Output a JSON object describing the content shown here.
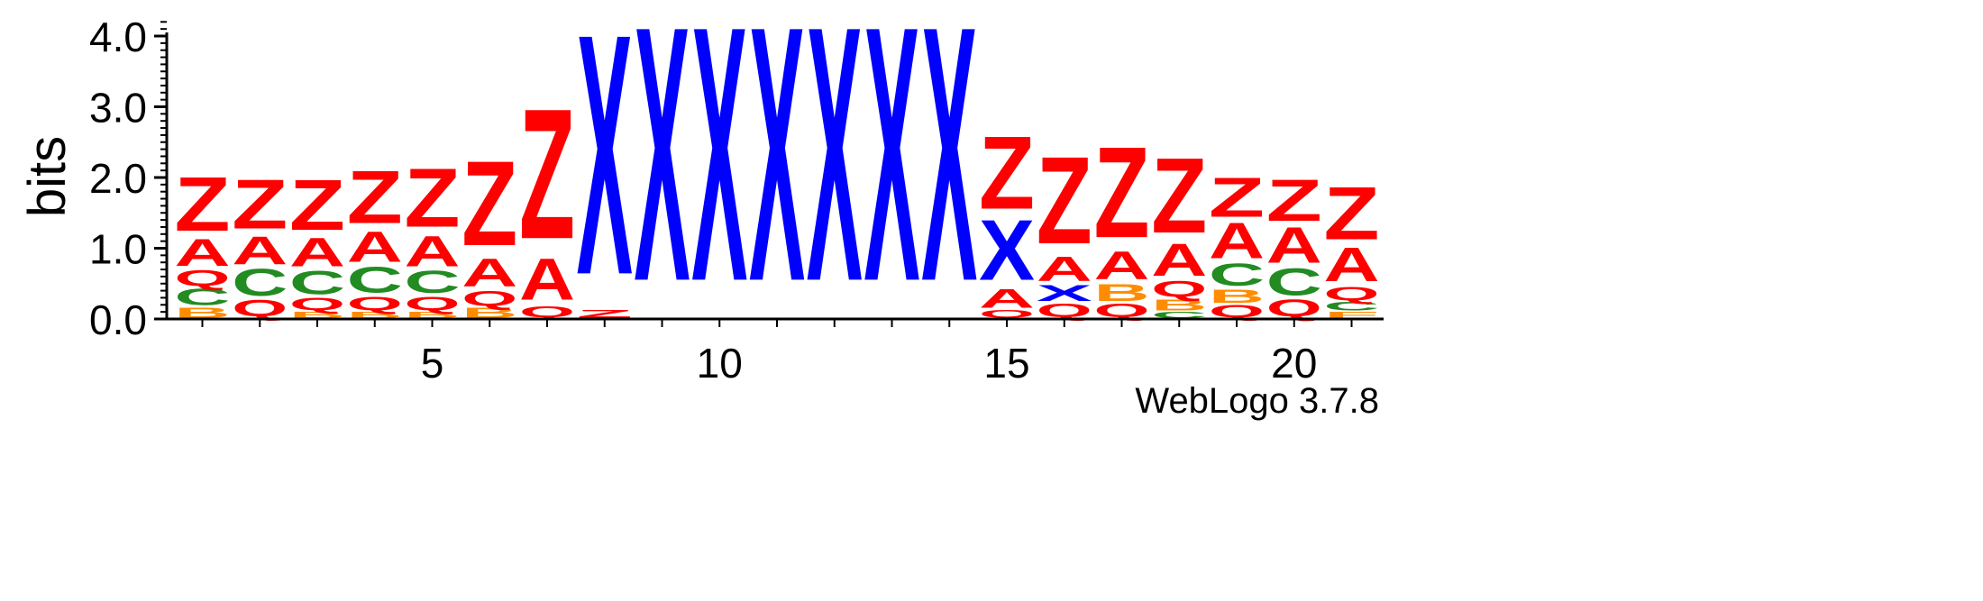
{
  "credit": "WebLogo 3.7.8",
  "colors": {
    "Z": "#ff0000",
    "A": "#ff0000",
    "Q": "#ff0000",
    "X": "#0000ff",
    "C": "#228b22",
    "B": "#ff8c00",
    "F": "#ff8c00"
  },
  "chart_data": {
    "type": "sequence-logo",
    "xlabel": "",
    "ylabel": "bits",
    "ylim": [
      0,
      4.2
    ],
    "yticks": [
      "0.0",
      "1.0",
      "2.0",
      "3.0",
      "4.0"
    ],
    "xticks": [
      "5",
      "10",
      "15",
      "20"
    ],
    "grid": false,
    "positions": [
      {
        "pos": 1,
        "stack": [
          {
            "letter": "B",
            "height": 0.16
          },
          {
            "letter": "C",
            "height": 0.27
          },
          {
            "letter": "Q",
            "height": 0.26
          },
          {
            "letter": "A",
            "height": 0.44
          },
          {
            "letter": "Z",
            "height": 0.88
          }
        ]
      },
      {
        "pos": 2,
        "stack": [
          {
            "letter": "Q",
            "height": 0.27
          },
          {
            "letter": "C",
            "height": 0.44
          },
          {
            "letter": "A",
            "height": 0.46
          },
          {
            "letter": "Z",
            "height": 0.8
          }
        ]
      },
      {
        "pos": 3,
        "stack": [
          {
            "letter": "B",
            "height": 0.1
          },
          {
            "letter": "Q",
            "height": 0.2
          },
          {
            "letter": "C",
            "height": 0.38
          },
          {
            "letter": "A",
            "height": 0.47
          },
          {
            "letter": "Z",
            "height": 0.82
          }
        ]
      },
      {
        "pos": 4,
        "stack": [
          {
            "letter": "B",
            "height": 0.1
          },
          {
            "letter": "Q",
            "height": 0.22
          },
          {
            "letter": "C",
            "height": 0.42
          },
          {
            "letter": "A",
            "height": 0.5
          },
          {
            "letter": "Z",
            "height": 0.86
          }
        ]
      },
      {
        "pos": 5,
        "stack": [
          {
            "letter": "B",
            "height": 0.1
          },
          {
            "letter": "Q",
            "height": 0.22
          },
          {
            "letter": "C",
            "height": 0.36
          },
          {
            "letter": "A",
            "height": 0.5
          },
          {
            "letter": "Z",
            "height": 0.95
          }
        ]
      },
      {
        "pos": 6,
        "stack": [
          {
            "letter": "B",
            "height": 0.16
          },
          {
            "letter": "Q",
            "height": 0.24
          },
          {
            "letter": "A",
            "height": 0.46
          },
          {
            "letter": "Z",
            "height": 1.38
          }
        ]
      },
      {
        "pos": 7,
        "stack": [
          {
            "letter": "Q",
            "height": 0.18
          },
          {
            "letter": "A",
            "height": 0.68
          },
          {
            "letter": "Z",
            "height": 2.12
          }
        ]
      },
      {
        "pos": 8,
        "stack": [
          {
            "letter": "Z",
            "height": 0.12
          },
          {
            "letter": "X",
            "height": 3.92
          }
        ]
      },
      {
        "pos": 9,
        "stack": [
          {
            "letter": "X",
            "height": 4.15
          }
        ]
      },
      {
        "pos": 10,
        "stack": [
          {
            "letter": "X",
            "height": 4.15
          }
        ]
      },
      {
        "pos": 11,
        "stack": [
          {
            "letter": "X",
            "height": 4.15
          }
        ]
      },
      {
        "pos": 12,
        "stack": [
          {
            "letter": "X",
            "height": 4.15
          }
        ]
      },
      {
        "pos": 13,
        "stack": [
          {
            "letter": "X",
            "height": 4.15
          }
        ]
      },
      {
        "pos": 14,
        "stack": [
          {
            "letter": "X",
            "height": 4.15
          }
        ]
      },
      {
        "pos": 15,
        "stack": [
          {
            "letter": "Q",
            "height": 0.12
          },
          {
            "letter": "A",
            "height": 0.3
          },
          {
            "letter": "X",
            "height": 0.98
          },
          {
            "letter": "Z",
            "height": 1.18
          }
        ]
      },
      {
        "pos": 16,
        "stack": [
          {
            "letter": "Q",
            "height": 0.22
          },
          {
            "letter": "X",
            "height": 0.26
          },
          {
            "letter": "A",
            "height": 0.4
          },
          {
            "letter": "Z",
            "height": 1.42
          }
        ]
      },
      {
        "pos": 17,
        "stack": [
          {
            "letter": "Q",
            "height": 0.22
          },
          {
            "letter": "B",
            "height": 0.28
          },
          {
            "letter": "A",
            "height": 0.46
          },
          {
            "letter": "Z",
            "height": 1.48
          }
        ]
      },
      {
        "pos": 18,
        "stack": [
          {
            "letter": "C",
            "height": 0.1
          },
          {
            "letter": "B",
            "height": 0.18
          },
          {
            "letter": "Q",
            "height": 0.26
          },
          {
            "letter": "A",
            "height": 0.52
          },
          {
            "letter": "Z",
            "height": 1.22
          }
        ]
      },
      {
        "pos": 19,
        "stack": [
          {
            "letter": "Q",
            "height": 0.2
          },
          {
            "letter": "B",
            "height": 0.22
          },
          {
            "letter": "C",
            "height": 0.36
          },
          {
            "letter": "A",
            "height": 0.58
          },
          {
            "letter": "Z",
            "height": 0.64
          }
        ]
      },
      {
        "pos": 20,
        "stack": [
          {
            "letter": "Q",
            "height": 0.28
          },
          {
            "letter": "C",
            "height": 0.44
          },
          {
            "letter": "A",
            "height": 0.58
          },
          {
            "letter": "Z",
            "height": 0.68
          }
        ]
      },
      {
        "pos": 21,
        "stack": [
          {
            "letter": "F",
            "height": 0.1
          },
          {
            "letter": "C",
            "height": 0.14
          },
          {
            "letter": "Q",
            "height": 0.22
          },
          {
            "letter": "A",
            "height": 0.55
          },
          {
            "letter": "Z",
            "height": 0.86
          }
        ]
      }
    ]
  }
}
